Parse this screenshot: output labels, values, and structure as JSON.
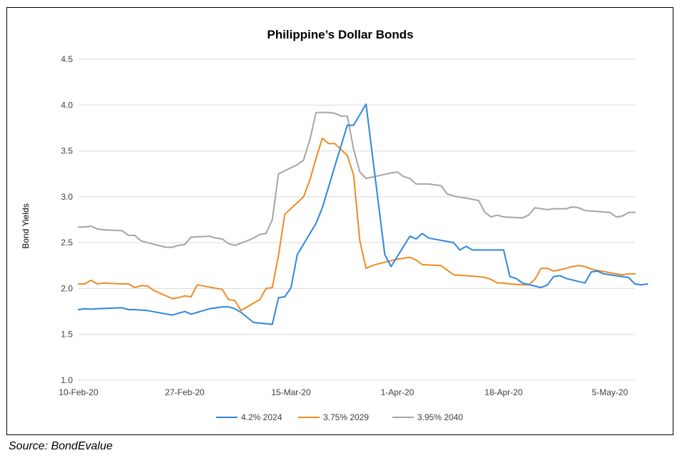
{
  "chart_data": {
    "type": "line",
    "title": "Philippine’s Dollar Bonds",
    "ylabel": "Bond Yields",
    "xlabel": "",
    "ylim": [
      1.0,
      4.5
    ],
    "yticks": [
      "1.0",
      "1.5",
      "2.0",
      "2.5",
      "3.0",
      "3.5",
      "4.0",
      "4.5"
    ],
    "xlim": [
      "2020-02-10",
      "2020-05-09"
    ],
    "xticks": [
      {
        "label": "10-Feb-20",
        "date": "2020-02-10"
      },
      {
        "label": "27-Feb-20",
        "date": "2020-02-27"
      },
      {
        "label": "15-Mar-20",
        "date": "2020-03-15"
      },
      {
        "label": "1-Apr-20",
        "date": "2020-04-01"
      },
      {
        "label": "18-Apr-20",
        "date": "2020-04-18"
      },
      {
        "label": "5-May-20",
        "date": "2020-05-05"
      }
    ],
    "grid": true,
    "legend_position": "bottom",
    "series": [
      {
        "name": "4.2% 2024",
        "color": "#2E86DE",
        "points": [
          [
            "2020-02-10",
            1.77
          ],
          [
            "2020-02-11",
            1.78
          ],
          [
            "2020-02-12",
            1.775
          ],
          [
            "2020-02-13",
            1.78
          ],
          [
            "2020-02-17",
            1.79
          ],
          [
            "2020-02-18",
            1.77
          ],
          [
            "2020-02-19",
            1.77
          ],
          [
            "2020-02-21",
            1.76
          ],
          [
            "2020-02-25",
            1.71
          ],
          [
            "2020-02-26",
            1.73
          ],
          [
            "2020-02-27",
            1.75
          ],
          [
            "2020-02-28",
            1.72
          ],
          [
            "2020-03-02",
            1.78
          ],
          [
            "2020-03-04",
            1.8
          ],
          [
            "2020-03-05",
            1.8
          ],
          [
            "2020-03-06",
            1.78
          ],
          [
            "2020-03-07",
            1.74
          ],
          [
            "2020-03-09",
            1.63
          ],
          [
            "2020-03-12",
            1.61
          ],
          [
            "2020-03-13",
            1.9
          ],
          [
            "2020-03-14",
            1.91
          ],
          [
            "2020-03-15",
            2.01
          ],
          [
            "2020-03-16",
            2.37
          ],
          [
            "2020-03-19",
            2.71
          ],
          [
            "2020-03-20",
            2.88
          ],
          [
            "2020-03-23",
            3.56
          ],
          [
            "2020-03-24",
            3.78
          ],
          [
            "2020-03-25",
            3.78
          ],
          [
            "2020-03-27",
            4.01
          ],
          [
            "2020-03-30",
            2.37
          ],
          [
            "2020-03-31",
            2.24
          ],
          [
            "2020-04-03",
            2.57
          ],
          [
            "2020-04-04",
            2.54
          ],
          [
            "2020-04-05",
            2.6
          ],
          [
            "2020-04-06",
            2.55
          ],
          [
            "2020-04-10",
            2.5
          ],
          [
            "2020-04-11",
            2.42
          ],
          [
            "2020-04-12",
            2.46
          ],
          [
            "2020-04-13",
            2.42
          ],
          [
            "2020-04-17",
            2.42
          ],
          [
            "2020-04-18",
            2.42
          ],
          [
            "2020-04-19",
            2.13
          ],
          [
            "2020-04-20",
            2.11
          ],
          [
            "2020-04-21",
            2.06
          ],
          [
            "2020-04-24",
            2.01
          ],
          [
            "2020-04-25",
            2.04
          ],
          [
            "2020-04-26",
            2.13
          ],
          [
            "2020-04-27",
            2.14
          ],
          [
            "2020-04-28",
            2.11
          ],
          [
            "2020-05-01",
            2.06
          ],
          [
            "2020-05-02",
            2.18
          ],
          [
            "2020-05-03",
            2.19
          ],
          [
            "2020-05-04",
            2.16
          ],
          [
            "2020-05-08",
            2.12
          ],
          [
            "2020-05-09",
            2.05
          ],
          [
            "2020-05-10",
            2.04
          ],
          [
            "2020-05-11",
            2.05
          ]
        ]
      },
      {
        "name": "3.75% 2029",
        "color": "#F08A24",
        "points": [
          [
            "2020-02-10",
            2.05
          ],
          [
            "2020-02-11",
            2.05
          ],
          [
            "2020-02-12",
            2.09
          ],
          [
            "2020-02-13",
            2.05
          ],
          [
            "2020-02-14",
            2.06
          ],
          [
            "2020-02-17",
            2.05
          ],
          [
            "2020-02-18",
            2.05
          ],
          [
            "2020-02-19",
            2.01
          ],
          [
            "2020-02-20",
            2.03
          ],
          [
            "2020-02-21",
            2.03
          ],
          [
            "2020-02-22",
            1.98
          ],
          [
            "2020-02-25",
            1.89
          ],
          [
            "2020-02-26",
            1.9
          ],
          [
            "2020-02-27",
            1.92
          ],
          [
            "2020-02-28",
            1.91
          ],
          [
            "2020-02-29",
            2.04
          ],
          [
            "2020-03-04",
            1.99
          ],
          [
            "2020-03-05",
            1.88
          ],
          [
            "2020-03-06",
            1.87
          ],
          [
            "2020-03-07",
            1.76
          ],
          [
            "2020-03-10",
            1.88
          ],
          [
            "2020-03-11",
            2.0
          ],
          [
            "2020-03-12",
            2.01
          ],
          [
            "2020-03-13",
            2.36
          ],
          [
            "2020-03-14",
            2.81
          ],
          [
            "2020-03-17",
            3.0
          ],
          [
            "2020-03-18",
            3.18
          ],
          [
            "2020-03-19",
            3.42
          ],
          [
            "2020-03-20",
            3.64
          ],
          [
            "2020-03-21",
            3.58
          ],
          [
            "2020-03-22",
            3.58
          ],
          [
            "2020-03-24",
            3.45
          ],
          [
            "2020-03-25",
            3.24
          ],
          [
            "2020-03-26",
            2.52
          ],
          [
            "2020-03-27",
            2.22
          ],
          [
            "2020-03-28",
            2.25
          ],
          [
            "2020-03-29",
            2.27
          ],
          [
            "2020-04-01",
            2.32
          ],
          [
            "2020-04-02",
            2.33
          ],
          [
            "2020-04-03",
            2.34
          ],
          [
            "2020-04-04",
            2.31
          ],
          [
            "2020-04-05",
            2.26
          ],
          [
            "2020-04-08",
            2.25
          ],
          [
            "2020-04-10",
            2.15
          ],
          [
            "2020-04-14",
            2.13
          ],
          [
            "2020-04-15",
            2.12
          ],
          [
            "2020-04-16",
            2.1
          ],
          [
            "2020-04-17",
            2.06
          ],
          [
            "2020-04-18",
            2.06
          ],
          [
            "2020-04-19",
            2.05
          ],
          [
            "2020-04-21",
            2.04
          ],
          [
            "2020-04-22",
            2.04
          ],
          [
            "2020-04-23",
            2.1
          ],
          [
            "2020-04-24",
            2.22
          ],
          [
            "2020-04-25",
            2.22
          ],
          [
            "2020-04-26",
            2.19
          ],
          [
            "2020-04-28",
            2.22
          ],
          [
            "2020-04-29",
            2.24
          ],
          [
            "2020-04-30",
            2.25
          ],
          [
            "2020-05-01",
            2.24
          ],
          [
            "2020-05-02",
            2.21
          ],
          [
            "2020-05-06",
            2.16
          ],
          [
            "2020-05-07",
            2.15
          ],
          [
            "2020-05-08",
            2.16
          ],
          [
            "2020-05-09",
            2.16
          ]
        ]
      },
      {
        "name": "3.95% 2040",
        "color": "#A5A5A5",
        "points": [
          [
            "2020-02-10",
            2.67
          ],
          [
            "2020-02-11",
            2.67
          ],
          [
            "2020-02-12",
            2.68
          ],
          [
            "2020-02-13",
            2.65
          ],
          [
            "2020-02-14",
            2.64
          ],
          [
            "2020-02-17",
            2.63
          ],
          [
            "2020-02-18",
            2.58
          ],
          [
            "2020-02-19",
            2.58
          ],
          [
            "2020-02-20",
            2.52
          ],
          [
            "2020-02-21",
            2.5
          ],
          [
            "2020-02-24",
            2.45
          ],
          [
            "2020-02-25",
            2.45
          ],
          [
            "2020-02-26",
            2.47
          ],
          [
            "2020-02-27",
            2.48
          ],
          [
            "2020-02-28",
            2.56
          ],
          [
            "2020-03-02",
            2.57
          ],
          [
            "2020-03-03",
            2.55
          ],
          [
            "2020-03-04",
            2.54
          ],
          [
            "2020-03-05",
            2.49
          ],
          [
            "2020-03-06",
            2.47
          ],
          [
            "2020-03-08",
            2.52
          ],
          [
            "2020-03-09",
            2.55
          ],
          [
            "2020-03-10",
            2.59
          ],
          [
            "2020-03-11",
            2.6
          ],
          [
            "2020-03-12",
            2.75
          ],
          [
            "2020-03-13",
            3.25
          ],
          [
            "2020-03-16",
            3.35
          ],
          [
            "2020-03-17",
            3.4
          ],
          [
            "2020-03-18",
            3.62
          ],
          [
            "2020-03-19",
            3.92
          ],
          [
            "2020-03-20",
            3.92
          ],
          [
            "2020-03-21",
            3.92
          ],
          [
            "2020-03-22",
            3.91
          ],
          [
            "2020-03-23",
            3.88
          ],
          [
            "2020-03-24",
            3.88
          ],
          [
            "2020-03-25",
            3.52
          ],
          [
            "2020-03-26",
            3.27
          ],
          [
            "2020-03-27",
            3.2
          ],
          [
            "2020-03-29",
            3.23
          ],
          [
            "2020-03-31",
            3.26
          ],
          [
            "2020-04-01",
            3.27
          ],
          [
            "2020-04-02",
            3.22
          ],
          [
            "2020-04-03",
            3.2
          ],
          [
            "2020-04-04",
            3.14
          ],
          [
            "2020-04-06",
            3.14
          ],
          [
            "2020-04-07",
            3.13
          ],
          [
            "2020-04-08",
            3.12
          ],
          [
            "2020-04-09",
            3.03
          ],
          [
            "2020-04-10",
            3.01
          ],
          [
            "2020-04-14",
            2.96
          ],
          [
            "2020-04-15",
            2.83
          ],
          [
            "2020-04-16",
            2.78
          ],
          [
            "2020-04-17",
            2.8
          ],
          [
            "2020-04-18",
            2.78
          ],
          [
            "2020-04-21",
            2.77
          ],
          [
            "2020-04-22",
            2.8
          ],
          [
            "2020-04-23",
            2.88
          ],
          [
            "2020-04-25",
            2.86
          ],
          [
            "2020-04-26",
            2.87
          ],
          [
            "2020-04-28",
            2.87
          ],
          [
            "2020-04-29",
            2.89
          ],
          [
            "2020-04-30",
            2.88
          ],
          [
            "2020-05-01",
            2.85
          ],
          [
            "2020-05-05",
            2.83
          ],
          [
            "2020-05-06",
            2.78
          ],
          [
            "2020-05-07",
            2.79
          ],
          [
            "2020-05-08",
            2.83
          ],
          [
            "2020-05-09",
            2.83
          ]
        ]
      }
    ]
  },
  "source_note": "Source: BondEvalue"
}
